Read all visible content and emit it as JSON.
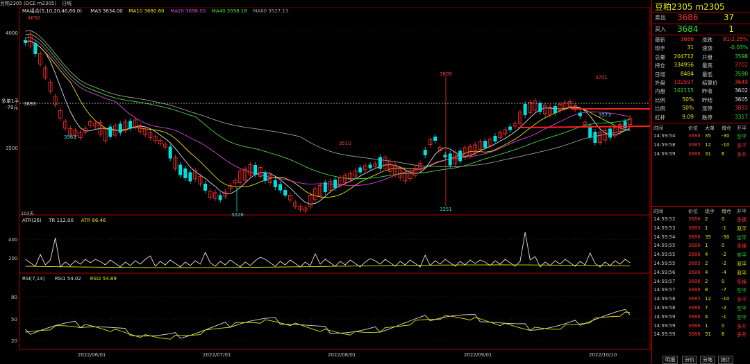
{
  "titlebar": {
    "instrument": "豆粕2305 (DCE m2305)",
    "period": "日线"
  },
  "main": {
    "ma_legend": [
      {
        "text": "MA组合(5,10,20,40,60,0)",
        "color": "#e0e0e0"
      },
      {
        "text": "MA5 3634.00",
        "color": "#e0e0e0"
      },
      {
        "text": "MA10 3680.60",
        "color": "#e8e800"
      },
      {
        "text": "MA20 3698.00",
        "color": "#e040e0"
      },
      {
        "text": "MA40 3598.18",
        "color": "#40e040"
      },
      {
        "text": "MA60 3527.13",
        "color": "#a0a0a0"
      }
    ],
    "y_ticks": [
      "4000",
      "3500"
    ],
    "position_label": "多单1手",
    "position_pnl": "-70元",
    "position_price": "3693",
    "peak_labels": [
      "4050",
      "3563",
      "3510",
      "3809",
      "3226",
      "3251",
      "3701",
      "3573"
    ],
    "bar_count": "103天",
    "dates": [
      "2022/06/01",
      "2022/07/01",
      "2022/08/01",
      "2022/09/01",
      "2022/10/10"
    ]
  },
  "atr": {
    "legend": [
      {
        "text": "ATR(26)",
        "color": "#e0e0e0"
      },
      {
        "text": "TR 112.00",
        "color": "#e0e0e0"
      },
      {
        "text": "ATR 66.46",
        "color": "#e8e800"
      }
    ],
    "y_ticks": [
      "400",
      "200"
    ]
  },
  "rsi": {
    "legend": [
      {
        "text": "RSI(7,14)",
        "color": "#e0e0e0"
      },
      {
        "text": "RSI1 54.02",
        "color": "#e0e0e0"
      },
      {
        "text": "RSI2 54.89",
        "color": "#e8e800"
      }
    ],
    "y_ticks": [
      "80",
      "50",
      "20"
    ]
  },
  "panel": {
    "title": "豆粕2305  m2305",
    "ask": {
      "label": "卖出",
      "price": "3686",
      "volume": "37"
    },
    "bid": {
      "label": "买入",
      "price": "3684",
      "volume": "1"
    },
    "stats_left": [
      {
        "label": "最新",
        "value": "3686",
        "color": "#ff3030"
      },
      {
        "label": "现手",
        "value": "31",
        "color": "#e8e800"
      },
      {
        "label": "总量",
        "value": "204712",
        "color": "#e8e800"
      },
      {
        "label": "持仓",
        "value": "334956",
        "color": "#e8e800"
      },
      {
        "label": "日增",
        "value": "8484",
        "color": "#e8e800"
      },
      {
        "label": "外盘",
        "value": "102597",
        "color": "#ff3030"
      },
      {
        "label": "内盘",
        "value": "102115",
        "color": "#30e030"
      },
      {
        "label": "比例",
        "value": "50%",
        "color": "#e8e800"
      },
      {
        "label": "比例",
        "value": "50%",
        "color": "#e8e800"
      },
      {
        "label": "杠杆",
        "value": "9.09",
        "color": "#e8e800"
      }
    ],
    "stats_right": [
      {
        "label": "涨跌",
        "value": "81/2.25%",
        "color": "#ff3030"
      },
      {
        "label": "速涨",
        "value": "-0.03%",
        "color": "#30e030"
      },
      {
        "label": "开盘",
        "value": "3598",
        "color": "#30e030"
      },
      {
        "label": "最高",
        "value": "3702",
        "color": "#ff3030"
      },
      {
        "label": "最低",
        "value": "3590",
        "color": "#30e030"
      },
      {
        "label": "结算价",
        "value": "3649",
        "color": "#ff3030"
      },
      {
        "label": "昨收",
        "value": "3602",
        "color": "#e0e0e0"
      },
      {
        "label": "昨结",
        "value": "3605",
        "color": "#e0e0e0"
      },
      {
        "label": "涨停",
        "value": "3893",
        "color": "#ff3030"
      },
      {
        "label": "跌停",
        "value": "3317",
        "color": "#30e030"
      }
    ],
    "ticks1_header": [
      "时间",
      "价位",
      "大单",
      "增仓",
      "开平"
    ],
    "ticks1": [
      {
        "time": "14:59:54",
        "price": "3686",
        "vol": "35",
        "chg": "-30",
        "type": "空平"
      },
      {
        "time": "14:59:58",
        "price": "3685",
        "vol": "12",
        "chg": "-10",
        "type": "多平"
      },
      {
        "time": "14:59:59",
        "price": "3686",
        "vol": "31",
        "chg": "6",
        "type": "多开"
      }
    ],
    "ticks2_header": [
      "时间",
      "价位",
      "现手",
      "增仓",
      "开平"
    ],
    "ticks2": [
      {
        "time": "14:59:52",
        "price": "3686",
        "vol": "2",
        "chg": "0",
        "type": "多换"
      },
      {
        "time": "14:59:53",
        "price": "3685",
        "vol": "1",
        "chg": "-1",
        "type": "双平"
      },
      {
        "time": "14:59:54",
        "price": "3686",
        "vol": "35",
        "chg": "-30",
        "type": "空平"
      },
      {
        "time": "14:59:55",
        "price": "3686",
        "vol": "1",
        "chg": "0",
        "type": "多换"
      },
      {
        "time": "14:59:55",
        "price": "3686",
        "vol": "4",
        "chg": "-2",
        "type": "空平"
      },
      {
        "time": "14:59:55",
        "price": "3685",
        "vol": "2",
        "chg": "-2",
        "type": "双平"
      },
      {
        "time": "14:59:56",
        "price": "3686",
        "vol": "4",
        "chg": "-4",
        "type": "双平"
      },
      {
        "time": "14:59:57",
        "price": "3686",
        "vol": "2",
        "chg": "0",
        "type": "多换"
      },
      {
        "time": "14:59:57",
        "price": "3686",
        "vol": "8",
        "chg": "-7",
        "type": "空平"
      },
      {
        "time": "14:59:58",
        "price": "3685",
        "vol": "12",
        "chg": "-10",
        "type": "多平"
      },
      {
        "time": "14:59:58",
        "price": "3686",
        "vol": "7",
        "chg": "-2",
        "type": "空平"
      },
      {
        "time": "14:59:59",
        "price": "3686",
        "vol": "4",
        "chg": "-1",
        "type": "空平"
      },
      {
        "time": "14:59:59",
        "price": "3686",
        "vol": "1",
        "chg": "0",
        "type": "多开"
      },
      {
        "time": "14:59:59",
        "price": "3686",
        "vol": "31",
        "chg": "6",
        "type": "多开"
      }
    ],
    "tabs": [
      "明细",
      "分价",
      "分笔",
      "统计"
    ]
  },
  "colors": {
    "up": "#ff3030",
    "down": "#00e0e0",
    "border": "#b00000",
    "yellow": "#e8e800"
  }
}
